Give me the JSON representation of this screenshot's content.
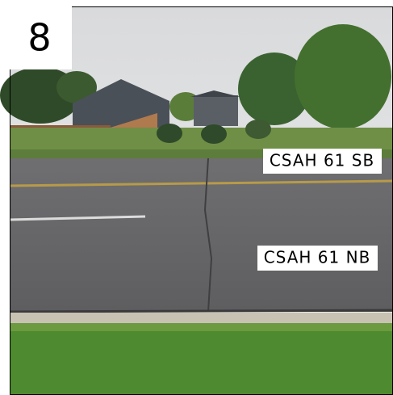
{
  "badge": "8",
  "road_labels": {
    "southbound": "CSAH 61 SB",
    "northbound": "CSAH 61 NB"
  }
}
